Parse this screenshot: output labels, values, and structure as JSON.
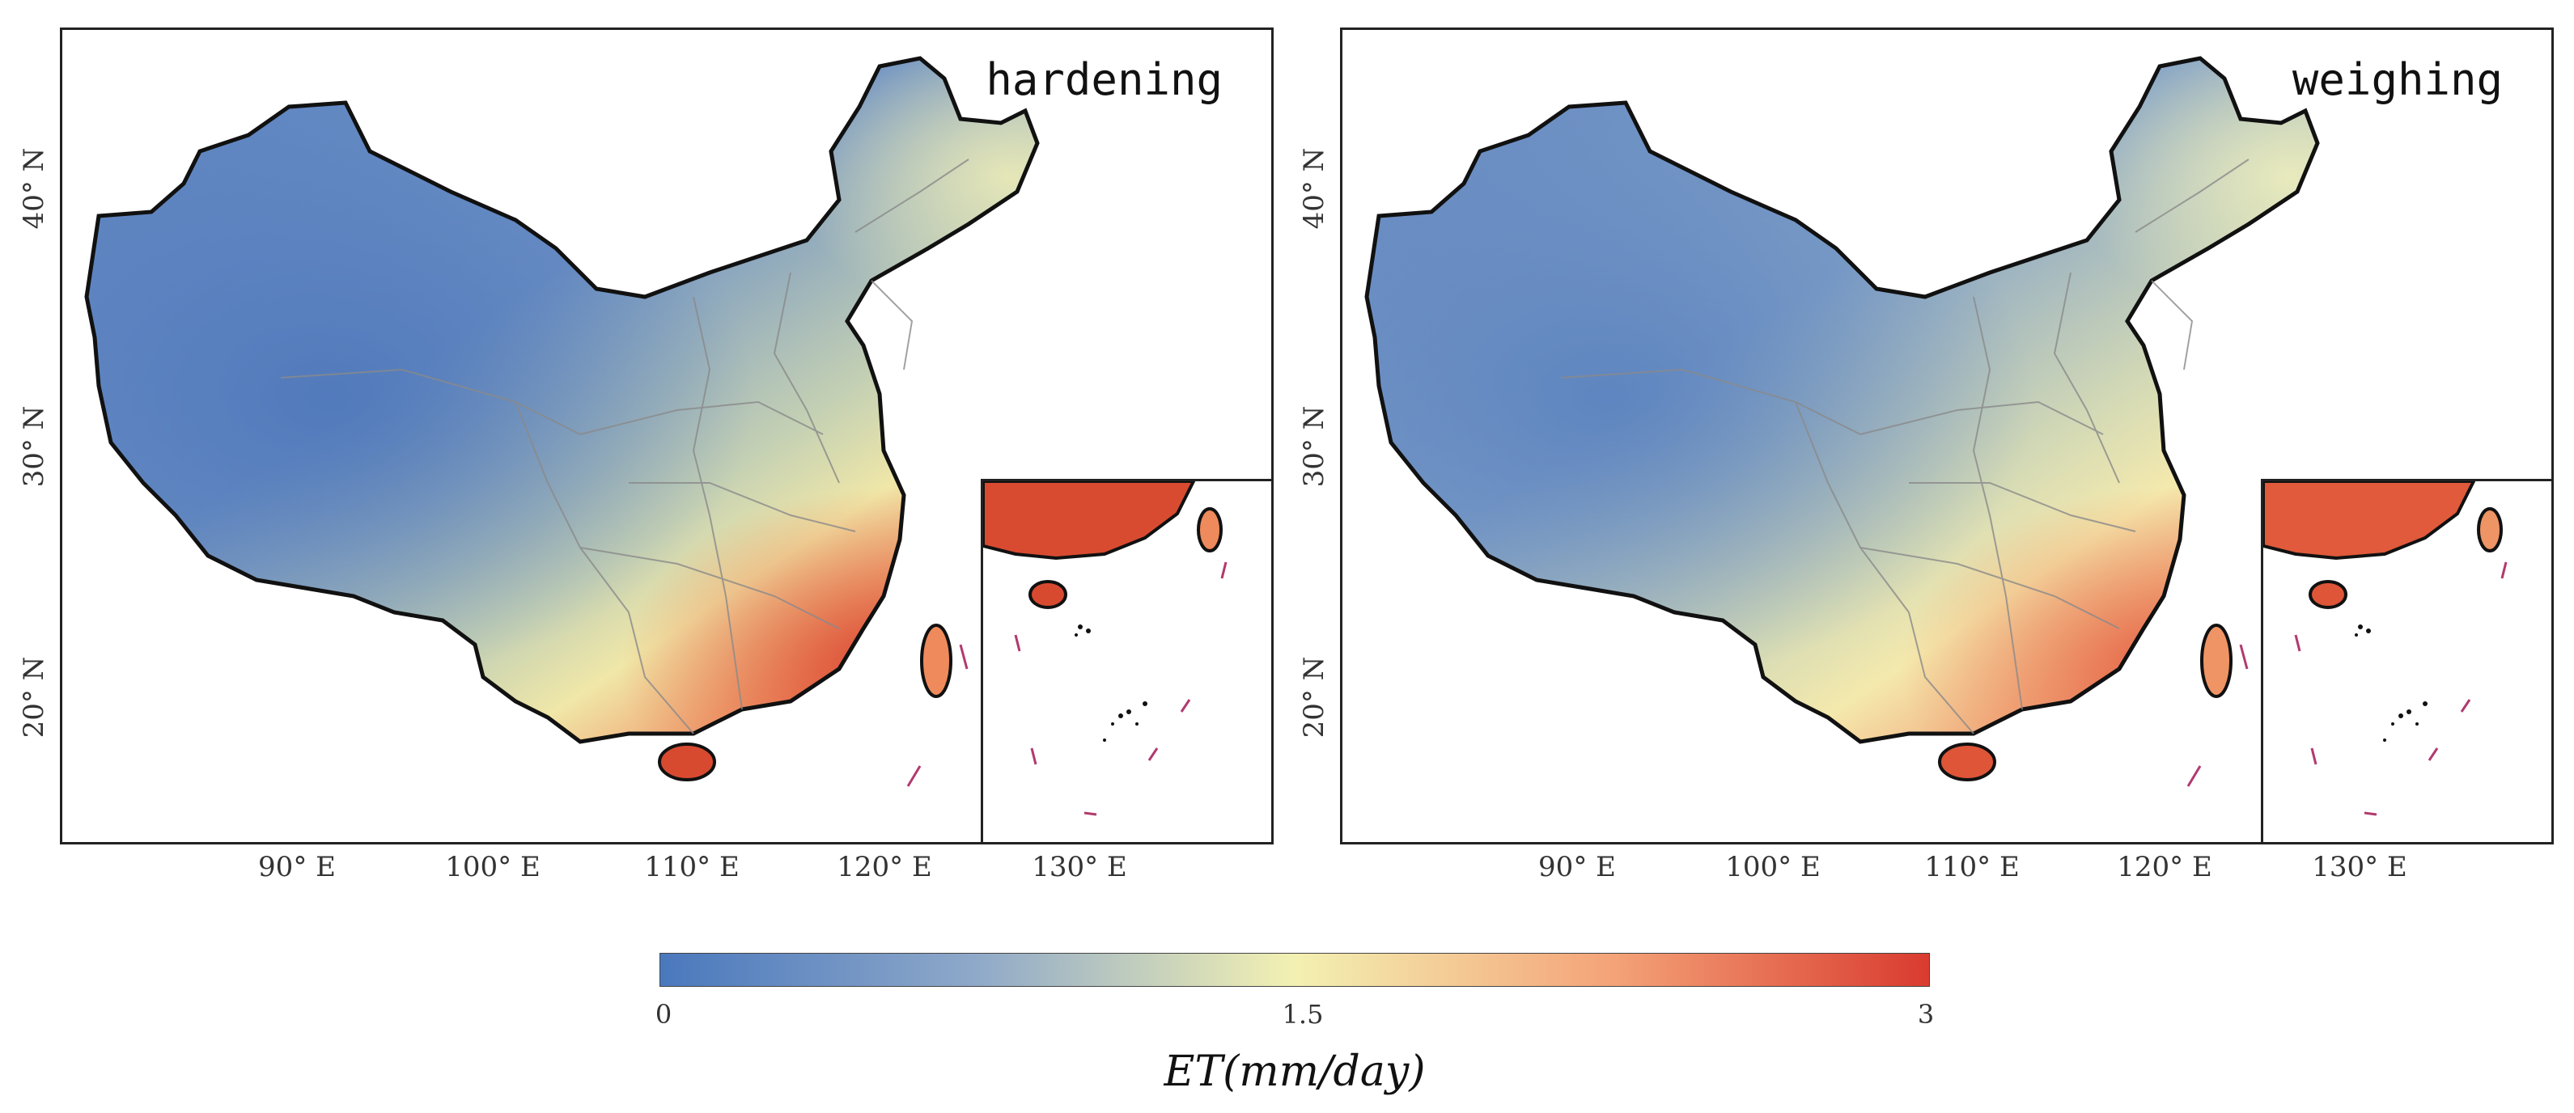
{
  "panels": [
    {
      "title": "hardening"
    },
    {
      "title": "weighing"
    }
  ],
  "x_ticks": [
    "90° E",
    "100° E",
    "110° E",
    "120° E",
    "130° E"
  ],
  "y_ticks": [
    "40° N",
    "30° N",
    "20° N"
  ],
  "colorbar": {
    "min_label": "0",
    "mid_label": "1.5",
    "max_label": "3",
    "label": "ET(mm/day)",
    "colors": [
      "#4a78bd",
      "#8fa9c9",
      "#f3f1b2",
      "#f4a378",
      "#d93b2f"
    ],
    "range": [
      0,
      3
    ]
  },
  "colors": {
    "border": "#111111",
    "province_lines": "#888888",
    "dash_line": "#b23a6e"
  }
}
